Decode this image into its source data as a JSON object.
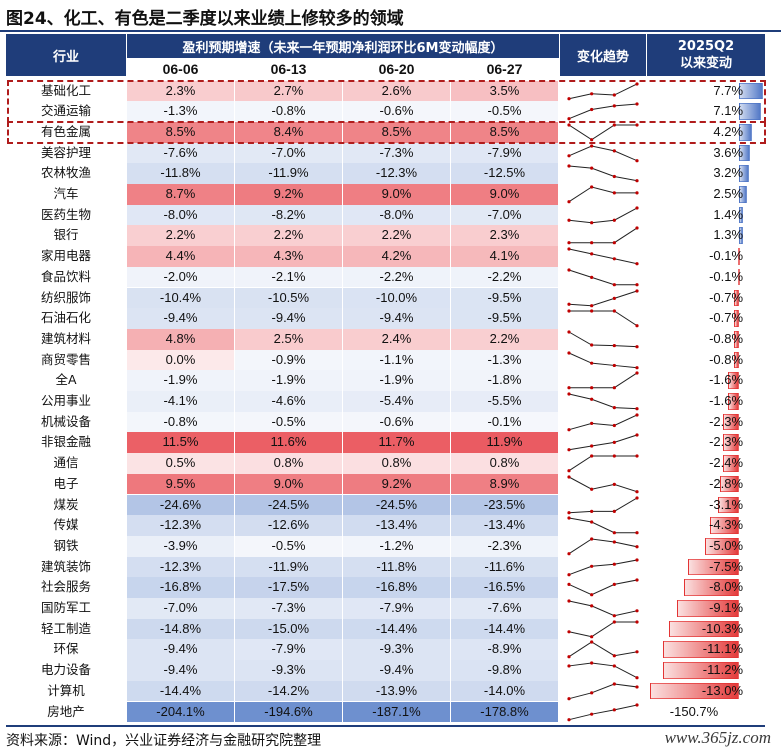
{
  "title": "图24、化工、有色是二季度以来业绩上修较多的领域",
  "headers": {
    "industry": "行业",
    "group": "盈利预期增速（未来一年预期净利润环比6M变动幅度）",
    "dates": [
      "06-06",
      "06-13",
      "06-20",
      "06-27"
    ],
    "trend": "变化趋势",
    "change_line1": "2025Q2",
    "change_line2": "以来变动"
  },
  "chart_data": {
    "type": "table",
    "columns": [
      "行业",
      "06-06",
      "06-13",
      "06-20",
      "06-27",
      "变化趋势",
      "2025Q2以来变动"
    ],
    "rows": [
      {
        "name": "基础化工",
        "values": [
          2.3,
          2.7,
          2.6,
          3.5
        ],
        "change": 7.7
      },
      {
        "name": "交通运输",
        "values": [
          -1.3,
          -0.8,
          -0.6,
          -0.5
        ],
        "change": 7.1
      },
      {
        "name": "有色金属",
        "values": [
          8.5,
          8.4,
          8.5,
          8.5
        ],
        "change": 4.2
      },
      {
        "name": "美容护理",
        "values": [
          -7.6,
          -7.0,
          -7.3,
          -7.9
        ],
        "change": 3.6
      },
      {
        "name": "农林牧渔",
        "values": [
          -11.8,
          -11.9,
          -12.3,
          -12.5
        ],
        "change": 3.2
      },
      {
        "name": "汽车",
        "values": [
          8.7,
          9.2,
          9.0,
          9.0
        ],
        "change": 2.5
      },
      {
        "name": "医药生物",
        "values": [
          -8.0,
          -8.2,
          -8.0,
          -7.0
        ],
        "change": 1.4
      },
      {
        "name": "银行",
        "values": [
          2.2,
          2.2,
          2.2,
          2.3
        ],
        "change": 1.3
      },
      {
        "name": "家用电器",
        "values": [
          4.4,
          4.3,
          4.2,
          4.1
        ],
        "change": -0.1
      },
      {
        "name": "食品饮料",
        "values": [
          -2.0,
          -2.1,
          -2.2,
          -2.2
        ],
        "change": -0.1
      },
      {
        "name": "纺织服饰",
        "values": [
          -10.4,
          -10.5,
          -10.0,
          -9.5
        ],
        "change": -0.7
      },
      {
        "name": "石油石化",
        "values": [
          -9.4,
          -9.4,
          -9.4,
          -9.5
        ],
        "change": -0.7
      },
      {
        "name": "建筑材料",
        "values": [
          4.8,
          2.5,
          2.4,
          2.2
        ],
        "change": -0.8
      },
      {
        "name": "商贸零售",
        "values": [
          0.0,
          -0.9,
          -1.1,
          -1.3
        ],
        "change": -0.8
      },
      {
        "name": "全A",
        "values": [
          -1.9,
          -1.9,
          -1.9,
          -1.8
        ],
        "change": -1.6
      },
      {
        "name": "公用事业",
        "values": [
          -4.1,
          -4.6,
          -5.4,
          -5.5
        ],
        "change": -1.6
      },
      {
        "name": "机械设备",
        "values": [
          -0.8,
          -0.5,
          -0.6,
          -0.1
        ],
        "change": -2.3
      },
      {
        "name": "非银金融",
        "values": [
          11.5,
          11.6,
          11.7,
          11.9
        ],
        "change": -2.3
      },
      {
        "name": "通信",
        "values": [
          0.5,
          0.8,
          0.8,
          0.8
        ],
        "change": -2.4
      },
      {
        "name": "电子",
        "values": [
          9.5,
          9.0,
          9.2,
          8.9
        ],
        "change": -2.8
      },
      {
        "name": "煤炭",
        "values": [
          -24.6,
          -24.5,
          -24.5,
          -23.5
        ],
        "change": -3.1
      },
      {
        "name": "传媒",
        "values": [
          -12.3,
          -12.6,
          -13.4,
          -13.4
        ],
        "change": -4.3
      },
      {
        "name": "钢铁",
        "values": [
          -3.9,
          -0.5,
          -1.2,
          -2.3
        ],
        "change": -5.0
      },
      {
        "name": "建筑装饰",
        "values": [
          -12.3,
          -11.9,
          -11.8,
          -11.6
        ],
        "change": -7.5
      },
      {
        "name": "社会服务",
        "values": [
          -16.8,
          -17.5,
          -16.8,
          -16.5
        ],
        "change": -8.0
      },
      {
        "name": "国防军工",
        "values": [
          -7.0,
          -7.3,
          -7.9,
          -7.6
        ],
        "change": -9.1
      },
      {
        "name": "轻工制造",
        "values": [
          -14.8,
          -15.0,
          -14.4,
          -14.4
        ],
        "change": -10.3
      },
      {
        "name": "环保",
        "values": [
          -9.4,
          -7.9,
          -9.3,
          -8.9
        ],
        "change": -11.1
      },
      {
        "name": "电力设备",
        "values": [
          -9.4,
          -9.3,
          -9.4,
          -9.8
        ],
        "change": -11.2
      },
      {
        "name": "计算机",
        "values": [
          -14.4,
          -14.2,
          -13.9,
          -14.0
        ],
        "change": -13.0
      },
      {
        "name": "房地产",
        "values": [
          -204.1,
          -194.6,
          -187.1,
          -178.8
        ],
        "change": -150.7
      }
    ],
    "highlighted_rows": [
      "基础化工",
      "交通运输",
      "有色金属"
    ]
  },
  "colors": {
    "header_bg": "#1f3d7a",
    "positive_heat": "#e8484f",
    "negative_heat": "#3d6bbf",
    "bar_positive": "#4a72c4",
    "bar_negative": "#e23030",
    "trend_line": "#222222",
    "trend_dot": "#c00000",
    "highlight_border": "#b01c1c"
  },
  "source": "资料来源：Wind，兴业证券经济与金融研究院整理",
  "watermark": "www.365jz.com"
}
